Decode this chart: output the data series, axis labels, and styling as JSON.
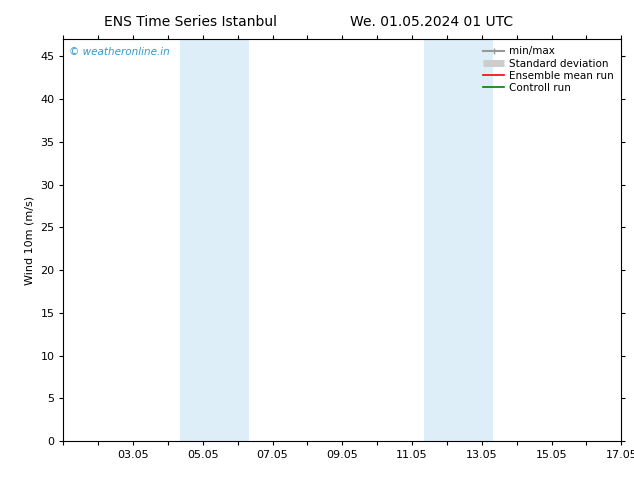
{
  "title_left": "ENS Time Series Istanbul",
  "title_right": "We. 01.05.2024 01 UTC",
  "ylabel": "Wind 10m (m/s)",
  "xlim": [
    0,
    16
  ],
  "ylim": [
    0,
    47
  ],
  "yticks": [
    0,
    5,
    10,
    15,
    20,
    25,
    30,
    35,
    40,
    45
  ],
  "xtick_labels": [
    "03.05",
    "05.05",
    "07.05",
    "09.05",
    "11.05",
    "13.05",
    "15.05",
    "17.05"
  ],
  "xtick_positions": [
    2,
    4,
    6,
    8,
    10,
    12,
    14,
    16
  ],
  "shaded_bands": [
    {
      "x_start": 3.33,
      "x_end": 5.33
    },
    {
      "x_start": 10.33,
      "x_end": 12.33
    }
  ],
  "band_color": "#ddeef8",
  "watermark_text": "© weatheronline.in",
  "watermark_color": "#3399cc",
  "legend_entries": [
    {
      "label": "min/max",
      "color": "#999999",
      "lw": 1.5
    },
    {
      "label": "Standard deviation",
      "color": "#cccccc",
      "lw": 5
    },
    {
      "label": "Ensemble mean run",
      "color": "red",
      "lw": 1.2
    },
    {
      "label": "Controll run",
      "color": "green",
      "lw": 1.2
    }
  ],
  "bg_color": "#ffffff",
  "plot_bg_color": "#ffffff",
  "border_color": "#000000",
  "tick_color": "#000000",
  "font_size": 8,
  "title_font_size": 10,
  "legend_font_size": 7.5
}
